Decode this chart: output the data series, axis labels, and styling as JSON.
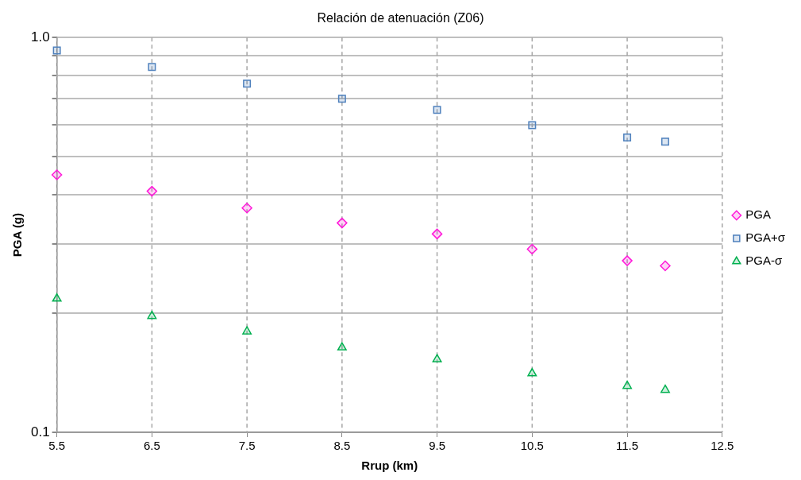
{
  "chart_data": {
    "type": "scatter",
    "title": "Relación de atenuación (Z06)",
    "xlabel": "Rrup (km)",
    "ylabel": "PGA (g)",
    "x": [
      5.5,
      6.5,
      7.5,
      8.5,
      9.5,
      10.5,
      11.5,
      11.9
    ],
    "series": [
      {
        "name": "PGA",
        "color": "#ff19d9",
        "marker": "diamond",
        "values": [
          0.449,
          0.408,
          0.37,
          0.339,
          0.318,
          0.291,
          0.272,
          0.264
        ]
      },
      {
        "name": "PGA+σ",
        "color": "#4f81bd",
        "marker": "square",
        "values": [
          0.927,
          0.842,
          0.764,
          0.7,
          0.656,
          0.6,
          0.558,
          0.545
        ]
      },
      {
        "name": "PGA-σ",
        "color": "#00b050",
        "marker": "triangle",
        "values": [
          0.218,
          0.197,
          0.18,
          0.164,
          0.153,
          0.141,
          0.131,
          0.128
        ]
      }
    ],
    "log": "y",
    "xlim": [
      5.5,
      12.5
    ],
    "xticks": [
      5.5,
      6.5,
      7.5,
      8.5,
      9.5,
      10.5,
      11.5,
      12.5
    ],
    "ylim": [
      0.1,
      1
    ],
    "yticks": [
      {
        "value": 0.1,
        "label": "0.1"
      },
      {
        "value": 0.2,
        "label": null
      },
      {
        "value": 0.3,
        "label": null
      },
      {
        "value": 0.4,
        "label": null
      },
      {
        "value": 0.5,
        "label": null
      },
      {
        "value": 0.6,
        "label": null
      },
      {
        "value": 0.7,
        "label": null
      },
      {
        "value": 0.8,
        "label": null
      },
      {
        "value": 0.9,
        "label": null
      },
      {
        "value": 1,
        "label": "1.0"
      }
    ],
    "grid": true,
    "legend": "right"
  }
}
